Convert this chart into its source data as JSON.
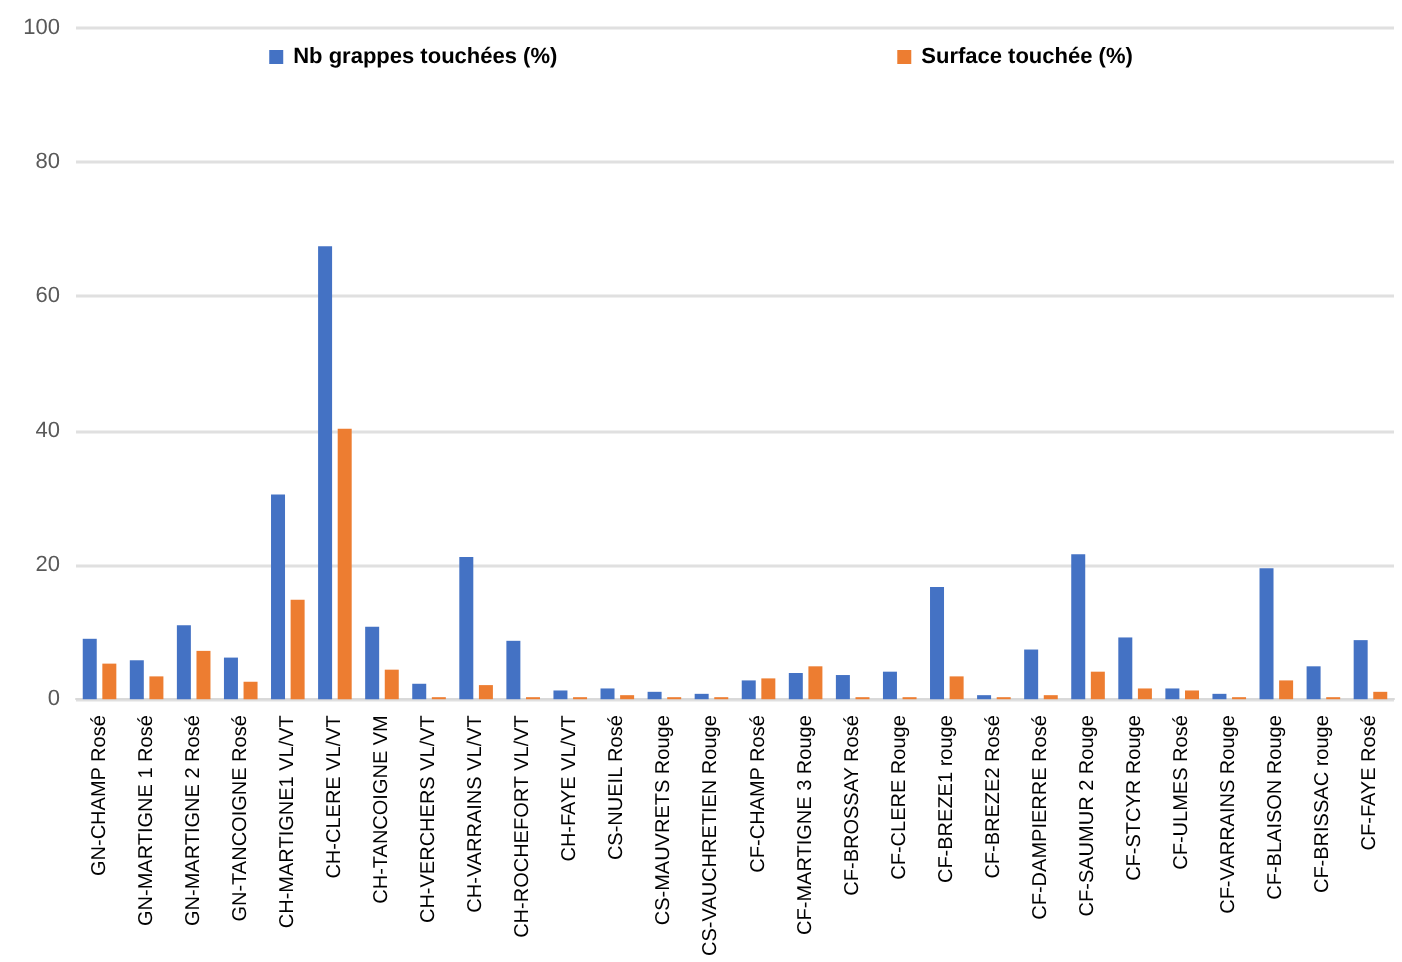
{
  "chart_data": {
    "type": "bar",
    "categories": [
      "GN-CHAMP Rosé",
      "GN-MARTIGNE 1 Rosé",
      "GN-MARTIGNE 2 Rosé",
      "GN-TANCOIGNE Rosé",
      "CH-MARTIGNE1 VL/VT",
      "CH-CLERE VL/VT",
      "CH-TANCOIGNE VM",
      "CH-VERCHERS VL/VT",
      "CH-VARRAINS VL/VT",
      "CH-ROCHEFORT VL/VT",
      "CH-FAYE VL/VT",
      "CS-NUEIL Rosé",
      "CS-MAUVRETS Rouge",
      "CS-VAUCHRETIEN Rouge",
      "CF-CHAMP Rosé",
      "CF-MARTIGNE 3 Rouge",
      "CF-BROSSAY Rosé",
      "CF-CLERE Rouge",
      "CF-BREZE1 rouge",
      "CF-BREZE2 Rosé",
      "CF-DAMPIERRE Rosé",
      "CF-SAUMUR 2 Rouge",
      "CF-STCYR Rouge",
      "CF-ULMES Rosé",
      "CF-VARRAINS Rouge",
      "CF-BLAISON Rouge",
      "CF-BRISSAC rouge",
      "CF-FAYE Rosé"
    ],
    "series": [
      {
        "name": "Nb grappes touchées (%)",
        "color": "#4472c4",
        "values": [
          9,
          5.8,
          11,
          6.2,
          30.5,
          67.5,
          10.8,
          2.3,
          21.2,
          8.7,
          1.3,
          1.6,
          1.1,
          0.8,
          2.8,
          3.9,
          3.6,
          4.1,
          16.7,
          0.6,
          7.4,
          21.6,
          9.2,
          1.6,
          0.8,
          19.5,
          4.9,
          8.8
        ]
      },
      {
        "name": "Surface touchée (%)",
        "color": "#ed7d31",
        "values": [
          5.3,
          3.4,
          7.2,
          2.6,
          14.8,
          40.3,
          4.4,
          0.3,
          2.1,
          0.3,
          0.3,
          0.6,
          0.3,
          0.3,
          3.1,
          4.9,
          0.3,
          0.3,
          3.4,
          0.3,
          0.6,
          4.1,
          1.6,
          1.3,
          0.3,
          2.8,
          0.3,
          1.1
        ]
      }
    ],
    "ylim": [
      0,
      100
    ],
    "yticks": [
      0,
      20,
      40,
      60,
      80,
      100
    ],
    "grid": "y",
    "legend": "top"
  }
}
